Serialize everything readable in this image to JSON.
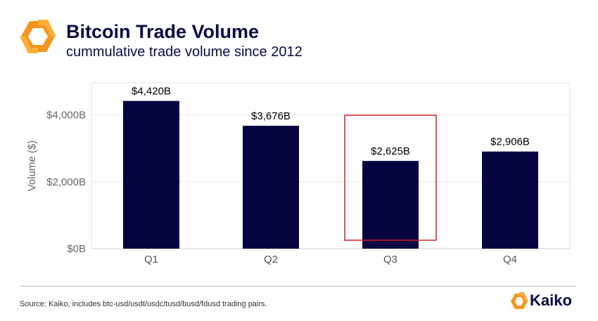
{
  "header": {
    "title": "Bitcoin Trade Volume",
    "subtitle": "cummulative trade volume since 2012"
  },
  "footer": {
    "source": "Source: Kaiko, includes btc-usd/usdt/usdc/tusd/busd/fdusd trading pairs.",
    "brand": "Kaiko"
  },
  "colors": {
    "bar": "#050540",
    "highlight": "#d4202a",
    "logo_orange": "#f7941d",
    "logo_yellow": "#fbb03b"
  },
  "chart_data": {
    "type": "bar",
    "categories": [
      "Q1",
      "Q2",
      "Q3",
      "Q4"
    ],
    "values": [
      4420,
      3676,
      2625,
      2906
    ],
    "data_labels": [
      "$4,420B",
      "$3,676B",
      "$2,625B",
      "$2,906B"
    ],
    "ylabel": "Volume ($)",
    "y_ticks": [
      0,
      2000,
      4000
    ],
    "y_tick_labels": [
      "$0B",
      "$2,000B",
      "$4,000B"
    ],
    "ylim": [
      0,
      4960
    ],
    "grid": true,
    "highlighted_category": "Q3"
  }
}
